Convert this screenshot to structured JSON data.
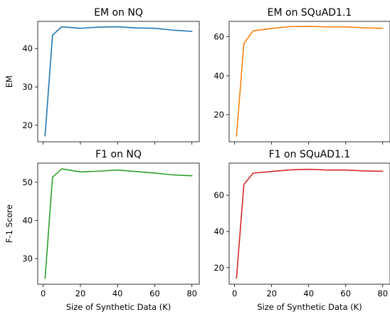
{
  "chart_data": [
    {
      "type": "line",
      "title": "EM on NQ",
      "xlabel": "",
      "ylabel": "EM",
      "xlim": [
        -2.95,
        83.95
      ],
      "ylim": [
        15.7,
        47.1
      ],
      "x": [
        1,
        5,
        10,
        20,
        30,
        40,
        50,
        60,
        70,
        80
      ],
      "series": [
        {
          "color": "#1f77b4",
          "values": [
            17.2,
            43.5,
            45.7,
            45.3,
            45.6,
            45.7,
            45.4,
            45.3,
            44.8,
            44.5
          ]
        }
      ],
      "x_ticks": [
        0,
        20,
        40,
        60,
        80
      ],
      "x_tick_labels": [
        "",
        "",
        "",
        "",
        ""
      ],
      "y_ticks": [
        20,
        30,
        40
      ],
      "y_tick_labels": [
        "20",
        "30",
        "40"
      ]
    },
    {
      "type": "line",
      "title": "EM on SQuAD1.1",
      "xlabel": "",
      "ylabel": "",
      "xlim": [
        -2.95,
        83.95
      ],
      "ylim": [
        6.1,
        67.9
      ],
      "x": [
        1,
        5,
        10,
        20,
        30,
        40,
        50,
        60,
        70,
        80
      ],
      "series": [
        {
          "color": "#ff7f0e",
          "values": [
            8.9,
            56.5,
            63.0,
            64.3,
            65.2,
            65.3,
            65.1,
            65.1,
            64.6,
            64.3
          ]
        }
      ],
      "x_ticks": [
        0,
        20,
        40,
        60,
        80
      ],
      "x_tick_labels": [
        "",
        "",
        "",
        "",
        ""
      ],
      "y_ticks": [
        20,
        40,
        60
      ],
      "y_tick_labels": [
        "20",
        "40",
        "60"
      ]
    },
    {
      "type": "line",
      "title": "F1 on NQ",
      "xlabel": "Size of Synthetic Data (K)",
      "ylabel": "F-1 Score",
      "xlim": [
        -2.95,
        83.95
      ],
      "ylim": [
        23.3,
        55.0
      ],
      "x": [
        1,
        5,
        10,
        20,
        30,
        40,
        50,
        60,
        70,
        80
      ],
      "series": [
        {
          "color": "#2ca02c",
          "values": [
            24.8,
            51.3,
            53.5,
            52.7,
            52.9,
            53.2,
            52.8,
            52.4,
            51.9,
            51.7
          ]
        }
      ],
      "x_ticks": [
        0,
        20,
        40,
        60,
        80
      ],
      "x_tick_labels": [
        "0",
        "20",
        "40",
        "60",
        "80"
      ],
      "y_ticks": [
        30,
        40,
        50
      ],
      "y_tick_labels": [
        "30",
        "40",
        "50"
      ]
    },
    {
      "type": "line",
      "title": "F1 on SQuAD1.1",
      "xlabel": "Size of Synthetic Data (K)",
      "ylabel": "",
      "xlim": [
        -2.95,
        83.95
      ],
      "ylim": [
        10.9,
        77.7
      ],
      "x": [
        1,
        5,
        10,
        20,
        30,
        40,
        50,
        60,
        70,
        80
      ],
      "series": [
        {
          "color": "#d62728",
          "values": [
            14.2,
            65.9,
            72.2,
            73.1,
            74.0,
            74.3,
            73.9,
            73.9,
            73.4,
            73.2
          ]
        }
      ],
      "x_ticks": [
        0,
        20,
        40,
        60,
        80
      ],
      "x_tick_labels": [
        "0",
        "20",
        "40",
        "60",
        "80"
      ],
      "y_ticks": [
        20,
        40,
        60
      ],
      "y_tick_labels": [
        "20",
        "40",
        "60"
      ]
    }
  ]
}
